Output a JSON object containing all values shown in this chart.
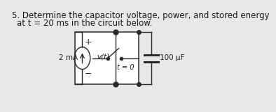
{
  "title_line1": "5. Determine the capacitor voltage, power, and stored energy",
  "title_line2": "at t = 20 ms in the circuit below.",
  "bg_color": "#e8e8e8",
  "box_facecolor": "#ffffff",
  "line_color": "#2a2a2a",
  "text_color": "#1a1a1a",
  "label_2mA": "2 mA",
  "label_vt": "v(t)",
  "label_t0": "t = 0",
  "label_cap": "100 μF",
  "plus_sign": "+",
  "minus_sign": "−",
  "title_fontsize": 8.5,
  "label_fontsize": 7.5,
  "small_fontsize": 7.0
}
